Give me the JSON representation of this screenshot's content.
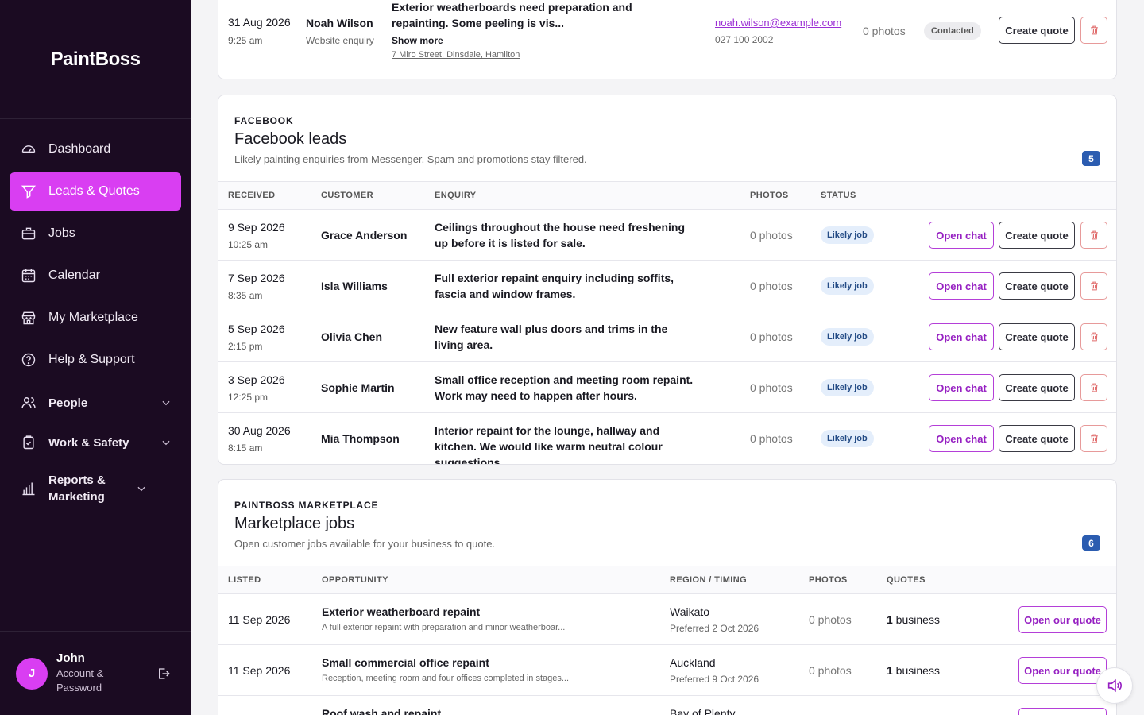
{
  "brand": "PaintBoss",
  "nav": [
    {
      "label": "Dashboard",
      "icon": "gauge-icon",
      "active": false
    },
    {
      "label": "Leads & Quotes",
      "icon": "filter-icon",
      "active": true
    },
    {
      "label": "Jobs",
      "icon": "briefcase-icon",
      "active": false
    },
    {
      "label": "Calendar",
      "icon": "calendar-icon",
      "active": false
    },
    {
      "label": "My Marketplace",
      "icon": "store-icon",
      "active": false
    },
    {
      "label": "Help & Support",
      "icon": "help-icon",
      "active": false
    }
  ],
  "groups": [
    {
      "label": "People",
      "icon": "people-icon"
    },
    {
      "label": "Work & Safety",
      "icon": "clipboard-icon"
    },
    {
      "label": "Reports & Marketing",
      "icon": "chart-icon"
    }
  ],
  "user": {
    "initial": "J",
    "name": "John",
    "sub": "Account & Password"
  },
  "top_lead": {
    "date": "31 Aug 2026",
    "time": "9:25 am",
    "customer": "Noah Wilson",
    "source": "Website enquiry",
    "enquiry": "Exterior weatherboards need preparation and repainting. Some peeling is vis...",
    "show_more": "Show more",
    "address": "7 Miro Street, Dinsdale, Hamilton",
    "email": "noah.wilson@example.com",
    "phone": "027 100 2002",
    "photos": "0 photos",
    "status": "Contacted",
    "create_quote": "Create quote"
  },
  "facebook": {
    "eyebrow": "FACEBOOK",
    "title": "Facebook leads",
    "desc": "Likely painting enquiries from Messenger. Spam and promotions stay filtered.",
    "count": "5",
    "headers": [
      "RECEIVED",
      "CUSTOMER",
      "ENQUIRY",
      "PHOTOS",
      "STATUS"
    ],
    "open_chat": "Open chat",
    "create_quote": "Create quote",
    "rows": [
      {
        "date": "9 Sep 2026",
        "time": "10:25 am",
        "customer": "Grace Anderson",
        "enquiry": "Ceilings throughout the house need freshening up before it is listed for sale.",
        "photos": "0 photos",
        "status": "Likely job"
      },
      {
        "date": "7 Sep 2026",
        "time": "8:35 am",
        "customer": "Isla Williams",
        "enquiry": "Full exterior repaint enquiry including soffits, fascia and window frames.",
        "photos": "0 photos",
        "status": "Likely job"
      },
      {
        "date": "5 Sep 2026",
        "time": "2:15 pm",
        "customer": "Olivia Chen",
        "enquiry": "New feature wall plus doors and trims in the living area.",
        "photos": "0 photos",
        "status": "Likely job"
      },
      {
        "date": "3 Sep 2026",
        "time": "12:25 pm",
        "customer": "Sophie Martin",
        "enquiry": "Small office reception and meeting room repaint. Work may need to happen after hours.",
        "photos": "0 photos",
        "status": "Likely job"
      },
      {
        "date": "30 Aug 2026",
        "time": "8:15 am",
        "customer": "Mia Thompson",
        "enquiry": "Interior repaint for the lounge, hallway and kitchen. We would like warm neutral colour suggestions.",
        "photos": "0 photos",
        "status": "Likely job"
      }
    ]
  },
  "marketplace": {
    "eyebrow": "PAINTBOSS MARKETPLACE",
    "title": "Marketplace jobs",
    "desc": "Open customer jobs available for your business to quote.",
    "count": "6",
    "headers": [
      "LISTED",
      "OPPORTUNITY",
      "REGION / TIMING",
      "PHOTOS",
      "QUOTES"
    ],
    "open_quote": "Open our quote",
    "rows": [
      {
        "date": "11 Sep 2026",
        "title": "Exterior weatherboard repaint",
        "desc": "A full exterior repaint with preparation and minor weatherboar...",
        "region": "Waikato",
        "pref": "Preferred 2 Oct 2026",
        "photos": "0 photos",
        "quotes_n": "1",
        "quotes_t": " business"
      },
      {
        "date": "11 Sep 2026",
        "title": "Small commercial office repaint",
        "desc": "Reception, meeting room and four offices completed in stages...",
        "region": "Auckland",
        "pref": "Preferred 9 Oct 2026",
        "photos": "0 photos",
        "quotes_n": "1",
        "quotes_t": " business"
      },
      {
        "date": "",
        "title": "Roof wash and repaint",
        "desc": "",
        "region": "Bay of Plenty",
        "pref": "",
        "photos": "",
        "quotes_n": "",
        "quotes_t": ""
      }
    ]
  }
}
